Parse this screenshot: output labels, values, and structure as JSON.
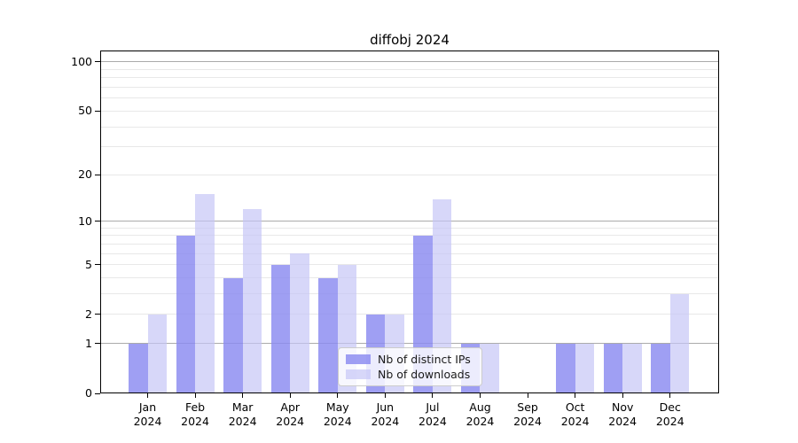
{
  "title": "diffobj 2024",
  "legend": {
    "items": [
      {
        "label": "Nb of distinct IPs",
        "color": "rgba(138,138,240,0.82)"
      },
      {
        "label": "Nb of downloads",
        "color": "rgba(196,196,246,0.68)"
      }
    ]
  },
  "axis": {
    "spine_color": "#000000",
    "major_grid_color": "#ababab",
    "minor_grid_color": "#e8e8e8",
    "y_tick_labels": [
      "0",
      "1",
      "2",
      "5",
      "10",
      "20",
      "50",
      "100"
    ]
  },
  "chart_data": {
    "type": "bar",
    "title": "diffobj 2024",
    "categories": [
      "Jan 2024",
      "Feb 2024",
      "Mar 2024",
      "Apr 2024",
      "May 2024",
      "Jun 2024",
      "Jul 2024",
      "Aug 2024",
      "Sep 2024",
      "Oct 2024",
      "Nov 2024",
      "Dec 2024"
    ],
    "series": [
      {
        "name": "Nb of distinct IPs",
        "color": "rgba(138,138,240,0.82)",
        "values": [
          1,
          8,
          4,
          5,
          4,
          2,
          8,
          1,
          0,
          1,
          1,
          1
        ]
      },
      {
        "name": "Nb of downloads",
        "color": "rgba(196,196,246,0.68)",
        "values": [
          2,
          15,
          12,
          6,
          5,
          2,
          14,
          1,
          0,
          1,
          1,
          3
        ]
      }
    ],
    "xlabel": "",
    "ylabel": "",
    "y_scale": "log10(1+value)",
    "ylim": [
      0,
      117
    ],
    "y_ticks": [
      0,
      1,
      2,
      5,
      10,
      20,
      50,
      100
    ],
    "y_major_gridlines": [
      1,
      10,
      100
    ],
    "y_minor_gridlines": [
      2,
      3,
      4,
      5,
      6,
      7,
      8,
      9,
      20,
      30,
      40,
      50,
      60,
      70,
      80,
      90
    ],
    "grid": true,
    "legend_position": "lower center (inside plot)"
  }
}
